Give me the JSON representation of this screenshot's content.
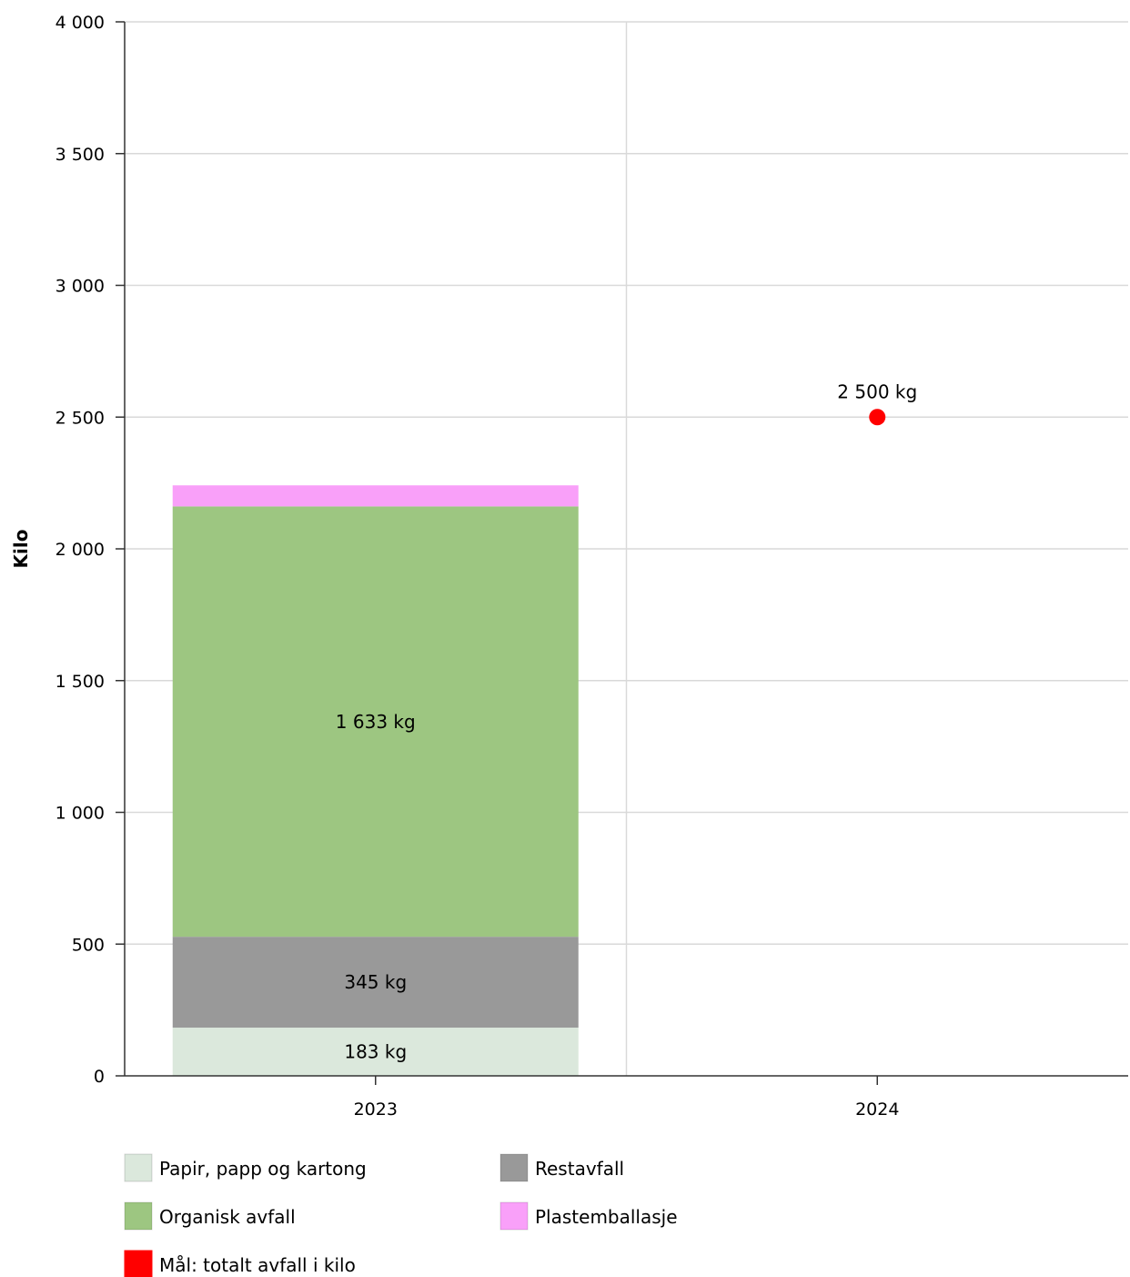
{
  "chart_data": {
    "type": "bar",
    "stacked": true,
    "categories": [
      "2023",
      "2024"
    ],
    "ylabel": "Kilo",
    "ylim": [
      0,
      4000
    ],
    "yticks": [
      0,
      500,
      1000,
      1500,
      2000,
      2500,
      3000,
      3500,
      4000
    ],
    "ytick_labels": [
      "0",
      "500",
      "1 000",
      "1 500",
      "2 000",
      "2 500",
      "3 000",
      "3 500",
      "4 000"
    ],
    "grid": true,
    "legend_position": "bottom",
    "series": [
      {
        "name": "Papir, papp og kartong",
        "color": "#dbe8dc",
        "values": [
          183,
          null
        ],
        "labels": [
          "183 kg",
          null
        ]
      },
      {
        "name": "Restavfall",
        "color": "#999999",
        "values": [
          345,
          null
        ],
        "labels": [
          "345 kg",
          null
        ]
      },
      {
        "name": "Organisk avfall",
        "color": "#9dc681",
        "values": [
          1633,
          null
        ],
        "labels": [
          "1 633 kg",
          null
        ]
      },
      {
        "name": "Plastemballasje",
        "color": "#f9a0f9",
        "values": [
          80,
          null
        ],
        "labels": [
          null,
          null
        ]
      }
    ],
    "target": {
      "name": "Mål: totalt avfall i kilo",
      "color": "#ff0000",
      "marker": "circle",
      "values": [
        null,
        2500
      ],
      "labels": [
        null,
        "2 500 kg"
      ]
    },
    "legend": [
      {
        "name": "Papir, papp og kartong",
        "color": "#dbe8dc"
      },
      {
        "name": "Restavfall",
        "color": "#999999"
      },
      {
        "name": "Organisk avfall",
        "color": "#9dc681"
      },
      {
        "name": "Plastemballasje",
        "color": "#f9a0f9"
      },
      {
        "name": "Mål: totalt avfall i kilo",
        "color": "#ff0000"
      }
    ]
  }
}
